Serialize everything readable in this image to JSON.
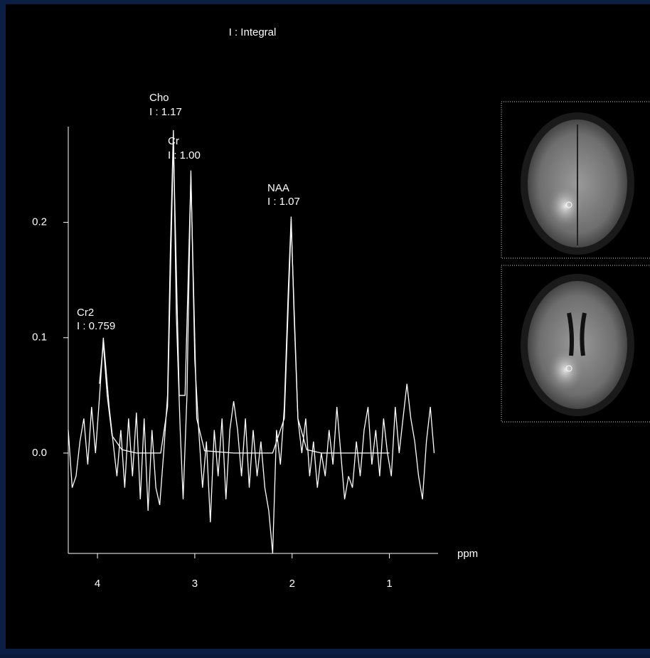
{
  "chart_data": {
    "type": "line",
    "title": "I : Integral",
    "x_label": "ppm",
    "xlim": [
      4.3,
      0.5
    ],
    "xticks": [
      4,
      3,
      2,
      1
    ],
    "ylim": [
      -0.087,
      0.283
    ],
    "yticks": [
      {
        "value": 0,
        "label": "0.0"
      },
      {
        "value": 0.1,
        "label": "0.1"
      },
      {
        "value": 0.2,
        "label": "0.2"
      }
    ],
    "annotations": [
      "Cho",
      "I : 1.17",
      "Cr",
      "I : 1.00",
      "NAA",
      "I : 1.07",
      "Cr2",
      "I : 0.759"
    ],
    "series": [
      {
        "color": "#ffffff",
        "x": [
          4.3,
          4.26,
          4.22,
          4.18,
          4.14,
          4.1,
          4.06,
          4.02,
          3.97,
          3.94,
          3.91,
          3.88,
          3.84,
          3.8,
          3.76,
          3.72,
          3.68,
          3.64,
          3.6,
          3.56,
          3.52,
          3.48,
          3.44,
          3.4,
          3.36,
          3.32,
          3.28,
          3.25,
          3.22,
          3.19,
          3.15,
          3.12,
          3.08,
          3.04,
          3.0,
          2.96,
          2.92,
          2.88,
          2.84,
          2.8,
          2.76,
          2.72,
          2.68,
          2.64,
          2.6,
          2.56,
          2.52,
          2.48,
          2.44,
          2.4,
          2.36,
          2.32,
          2.28,
          2.24,
          2.2,
          2.16,
          2.12,
          2.08,
          2.04,
          2.01,
          1.98,
          1.94,
          1.9,
          1.86,
          1.82,
          1.78,
          1.74,
          1.7,
          1.66,
          1.62,
          1.58,
          1.54,
          1.5,
          1.46,
          1.42,
          1.38,
          1.34,
          1.3,
          1.26,
          1.22,
          1.18,
          1.14,
          1.1,
          1.06,
          1.02,
          0.98,
          0.94,
          0.9,
          0.86,
          0.82,
          0.78,
          0.74,
          0.7,
          0.66,
          0.62,
          0.58,
          0.54
        ],
        "values": [
          0.02,
          -0.03,
          -0.02,
          0.01,
          0.03,
          -0.01,
          0.04,
          0.0,
          0.06,
          0.1,
          0.07,
          0.04,
          0.01,
          -0.02,
          0.02,
          -0.03,
          0.03,
          -0.02,
          0.035,
          -0.04,
          0.03,
          -0.05,
          0.02,
          -0.03,
          -0.045,
          0.0,
          0.05,
          0.18,
          0.28,
          0.12,
          0.02,
          -0.04,
          0.05,
          0.245,
          0.08,
          0.02,
          -0.03,
          0.01,
          -0.06,
          0.02,
          -0.02,
          0.03,
          -0.04,
          0.02,
          0.045,
          0.02,
          -0.02,
          0.03,
          -0.03,
          0.02,
          -0.02,
          0.01,
          -0.03,
          -0.05,
          -0.087,
          0.02,
          -0.01,
          0.04,
          0.14,
          0.205,
          0.12,
          0.03,
          0.0,
          0.03,
          -0.02,
          0.01,
          -0.03,
          0.0,
          -0.02,
          0.02,
          -0.01,
          0.04,
          0.0,
          -0.04,
          -0.02,
          -0.03,
          0.01,
          -0.02,
          0.02,
          0.04,
          -0.01,
          0.02,
          -0.02,
          0.03,
          0.0,
          -0.02,
          0.04,
          0.0,
          0.03,
          0.06,
          0.03,
          0.01,
          -0.02,
          -0.04,
          0.01,
          0.04,
          0.0
        ]
      },
      {
        "color": "#ffffff",
        "x": [
          3.98,
          3.94,
          3.9,
          3.85,
          3.75,
          3.6,
          3.35,
          3.28,
          3.22,
          3.16,
          3.1,
          3.04,
          2.98,
          2.9,
          2.6,
          2.2,
          2.08,
          2.01,
          1.94,
          1.85,
          1.7,
          1.0
        ],
        "values": [
          0.06,
          0.095,
          0.05,
          0.015,
          0.003,
          0,
          0,
          0.04,
          0.27,
          0.05,
          0.05,
          0.24,
          0.03,
          0.002,
          0,
          0,
          0.03,
          0.2,
          0.03,
          0.003,
          0,
          0
        ]
      }
    ]
  }
}
